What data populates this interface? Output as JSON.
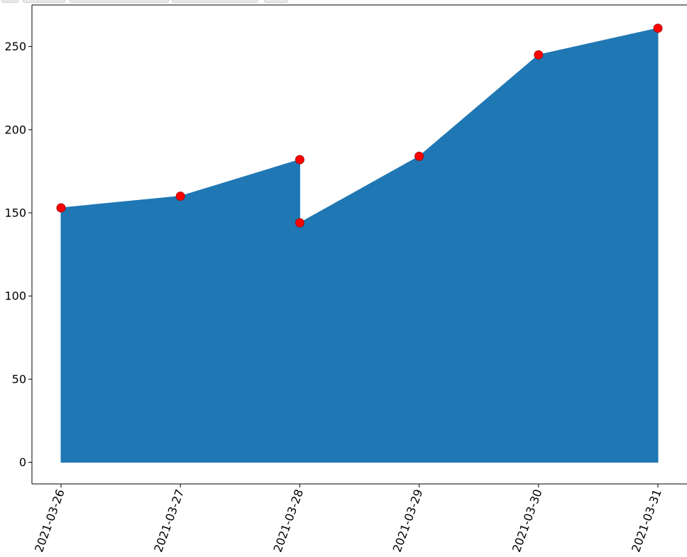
{
  "chart_data": {
    "type": "area",
    "x": [
      "2021-03-26",
      "2021-03-27",
      "2021-03-28",
      "2021-03-28",
      "2021-03-29",
      "2021-03-30",
      "2021-03-31"
    ],
    "y": [
      153,
      160,
      182,
      144,
      184,
      245,
      261
    ],
    "x_ticks": [
      "2021-03-26",
      "2021-03-27",
      "2021-03-28",
      "2021-03-29",
      "2021-03-30",
      "2021-03-31"
    ],
    "y_ticks": [
      0,
      50,
      100,
      150,
      200,
      250
    ],
    "ylim": [
      -13,
      275
    ],
    "xlabel": "",
    "ylabel": "",
    "title": "",
    "grid": false,
    "fill_color": "#1f77b4",
    "marker_color": "#ff0000",
    "marker_edge_color": "#a01010"
  }
}
